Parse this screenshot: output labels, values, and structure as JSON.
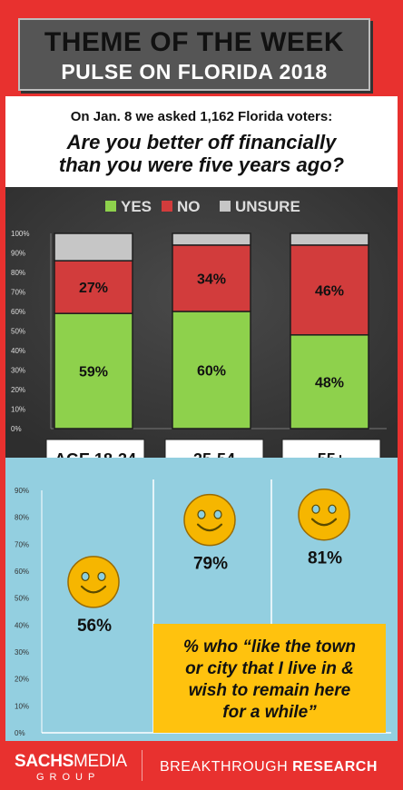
{
  "header": {
    "title": "THEME OF THE WEEK",
    "subtitle": "PULSE ON FLORIDA 2018"
  },
  "question": {
    "intro": "On Jan. 8 we asked 1,162 Florida voters:",
    "line1": "Are you better off financially",
    "line2": "than you were five years ago?"
  },
  "colors": {
    "yes": "#8ed14c",
    "no": "#d23c3c",
    "unsure": "#c6c6c6",
    "smiley": "#f6b600",
    "note_box": "#ffc20e",
    "brand_red": "#e8312f"
  },
  "chart_data": [
    {
      "type": "bar",
      "stacked": true,
      "categories": [
        "AGE 18-34",
        "35-54",
        "55+"
      ],
      "series": [
        {
          "name": "YES",
          "values": [
            59,
            60,
            48
          ],
          "labels": [
            "59%",
            "60%",
            "48%"
          ]
        },
        {
          "name": "NO",
          "values": [
            27,
            34,
            46
          ],
          "labels": [
            "27%",
            "34%",
            "46%"
          ]
        },
        {
          "name": "UNSURE",
          "values": [
            14,
            6,
            6
          ]
        }
      ],
      "ylim": [
        0,
        100
      ],
      "yticks": [
        "0%",
        "10%",
        "20%",
        "30%",
        "40%",
        "50%",
        "60%",
        "70%",
        "80%",
        "90%",
        "100%"
      ],
      "legend": "top",
      "grid": false
    },
    {
      "type": "scatter",
      "marker": "smiley",
      "categories": [
        "AGE 18-34",
        "35-54",
        "55+"
      ],
      "values": [
        56,
        79,
        81
      ],
      "labels": [
        "56%",
        "79%",
        "81%"
      ],
      "ylim": [
        0,
        90
      ],
      "yticks": [
        "0%",
        "10%",
        "20%",
        "30%",
        "40%",
        "50%",
        "60%",
        "70%",
        "80%",
        "90%"
      ],
      "note": {
        "line1": "% who “like the town",
        "line2": "or city that I live in &",
        "line3": "wish to remain here",
        "line4": "for a while”"
      }
    }
  ],
  "footer": {
    "brand_bold": "SACHS",
    "brand_thin": "MEDIA",
    "brand_sub": "GROUP",
    "tagline_thin": "BREAKTHROUGH ",
    "tagline_bold": "RESEARCH"
  }
}
